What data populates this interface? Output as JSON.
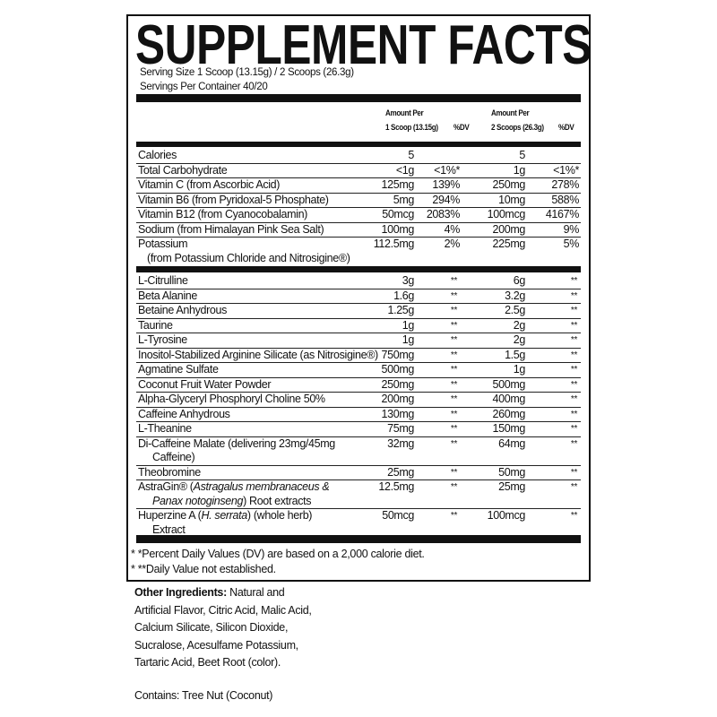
{
  "title": "SUPPLEMENT FACTS",
  "serving_size": "Serving Size 1 Scoop (13.15g) / 2 Scoops (26.3g)",
  "servings_per_container": "Servings Per Container 40/20",
  "header": {
    "amount_per_1": "Amount Per",
    "scoop_1": "1 Scoop (13.15g)",
    "dv_1": "%DV",
    "amount_per_2": "Amount Per",
    "scoop_2": "2 Scoops (26.3g)",
    "dv_2": "%DV"
  },
  "nutrients": [
    {
      "name": "Calories",
      "a1": "5",
      "d1": "",
      "a2": "5",
      "d2": ""
    },
    {
      "name": "Total Carbohydrate",
      "a1": "<1g",
      "d1": "<1%*",
      "a2": "1g",
      "d2": "<1%*"
    },
    {
      "name": "Vitamin C (from Ascorbic Acid)",
      "a1": "125mg",
      "d1": "139%",
      "a2": "250mg",
      "d2": "278%"
    },
    {
      "name": "Vitamin B6 (from Pyridoxal-5 Phosphate)",
      "a1": "5mg",
      "d1": "294%",
      "a2": "10mg",
      "d2": "588%"
    },
    {
      "name": "Vitamin B12 (from Cyanocobalamin)",
      "a1": "50mcg",
      "d1": "2083%",
      "a2": "100mcg",
      "d2": "4167%"
    },
    {
      "name": "Sodium (from Himalayan Pink Sea Salt)",
      "a1": "100mg",
      "d1": "4%",
      "a2": "200mg",
      "d2": "9%"
    },
    {
      "name": "Potassium",
      "name2": "(from Potassium Chloride and Nitrosigine®)",
      "a1": "112.5mg",
      "d1": "2%",
      "a2": "225mg",
      "d2": "5%"
    }
  ],
  "ingredients": [
    {
      "name": "L-Citrulline",
      "a1": "3g",
      "d1": "**",
      "a2": "6g",
      "d2": "**"
    },
    {
      "name": "Beta Alanine",
      "a1": "1.6g",
      "d1": "**",
      "a2": "3.2g",
      "d2": "**"
    },
    {
      "name": "Betaine Anhydrous",
      "a1": "1.25g",
      "d1": "**",
      "a2": "2.5g",
      "d2": "**"
    },
    {
      "name": "Taurine",
      "a1": "1g",
      "d1": "**",
      "a2": "2g",
      "d2": "**"
    },
    {
      "name": "L-Tyrosine",
      "a1": "1g",
      "d1": "**",
      "a2": "2g",
      "d2": "**"
    },
    {
      "name": "Inositol-Stabilized Arginine Silicate (as Nitrosigine®)",
      "a1": "750mg",
      "d1": "**",
      "a2": "1.5g",
      "d2": "**"
    },
    {
      "name": "Agmatine Sulfate",
      "a1": "500mg",
      "d1": "**",
      "a2": "1g",
      "d2": "**"
    },
    {
      "name": "Coconut Fruit Water Powder",
      "a1": "250mg",
      "d1": "**",
      "a2": "500mg",
      "d2": "**"
    },
    {
      "name": "Alpha-Glyceryl Phosphoryl Choline 50%",
      "a1": "200mg",
      "d1": "**",
      "a2": "400mg",
      "d2": "**"
    },
    {
      "name": "Caffeine Anhydrous",
      "a1": "130mg",
      "d1": "**",
      "a2": "260mg",
      "d2": "**"
    },
    {
      "name": "L-Theanine",
      "a1": "75mg",
      "d1": "**",
      "a2": "150mg",
      "d2": "**"
    },
    {
      "name": "Di-Caffeine Malate (delivering 23mg/45mg",
      "name2": "Caffeine)",
      "a1": "32mg",
      "d1": "**",
      "a2": "64mg",
      "d2": "**"
    },
    {
      "name": "Theobromine",
      "a1": "25mg",
      "d1": "**",
      "a2": "50mg",
      "d2": "**"
    },
    {
      "name_parts": [
        {
          "t": "AstraGin® ("
        },
        {
          "t": "Astragalus membranaceus &",
          "i": true
        }
      ],
      "name2_parts": [
        {
          "t": "Panax notoginseng",
          "i": true
        },
        {
          "t": ") Root extracts"
        }
      ],
      "a1": "12.5mg",
      "d1": "**",
      "a2": "25mg",
      "d2": "**"
    },
    {
      "name_parts": [
        {
          "t": "Huperzine A ("
        },
        {
          "t": "H. serrata",
          "i": true
        },
        {
          "t": ") (whole herb)"
        }
      ],
      "name2": "Extract",
      "a1": "50mcg",
      "d1": "**",
      "a2": "100mcg",
      "d2": "**"
    }
  ],
  "footnotes": [
    "* *Percent Daily Values (DV) are based on a 2,000 calorie diet.",
    "* **Daily Value not established."
  ],
  "other_ingredients": {
    "label": "Other Ingredients:",
    "text": " Natural and Artificial Flavor, Citric Acid, Malic Acid, Calcium Silicate, Silicon Dioxide, Sucralose, Acesulfame Potassium, Tartaric Acid, Beet Root (color)."
  },
  "contains": "Contains: Tree Nut (Coconut)"
}
